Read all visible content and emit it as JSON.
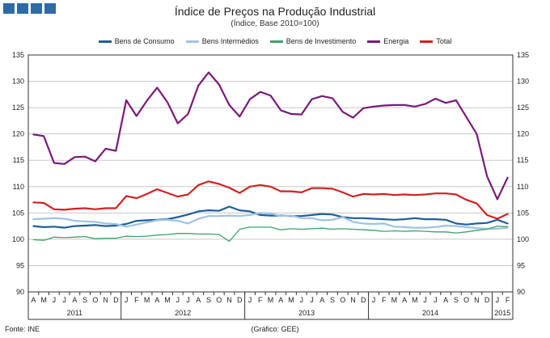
{
  "title": "Índice de Preços na Produção Industrial",
  "subtitle": "(Índice, Base 2010=100)",
  "source": "Fonte: INE",
  "credit": "(Gráfico: GEE)",
  "chart_data": {
    "type": "line",
    "ylim": [
      90,
      135
    ],
    "yticks": [
      90,
      95,
      100,
      105,
      110,
      115,
      120,
      125,
      130,
      135
    ],
    "month_labels": [
      "A",
      "M",
      "J",
      "J",
      "A",
      "S",
      "O",
      "N",
      "D",
      "J",
      "F",
      "M",
      "A",
      "M",
      "J",
      "J",
      "A",
      "S",
      "O",
      "N",
      "D",
      "J",
      "F",
      "M",
      "A",
      "M",
      "J",
      "J",
      "A",
      "S",
      "O",
      "N",
      "D",
      "J",
      "F",
      "M",
      "A",
      "M",
      "J",
      "J",
      "A",
      "S",
      "O",
      "N",
      "D",
      "J",
      "F"
    ],
    "year_labels": [
      {
        "label": "2011",
        "start": 0,
        "end": 8
      },
      {
        "label": "2012",
        "start": 9,
        "end": 20
      },
      {
        "label": "2013",
        "start": 21,
        "end": 32
      },
      {
        "label": "2014",
        "start": 33,
        "end": 44
      },
      {
        "label": "2015",
        "start": 45,
        "end": 46
      }
    ],
    "grid": true,
    "legend_position": "top",
    "series": [
      {
        "name": "Bens de Consumo",
        "color": "#1f5f99",
        "values": [
          102.5,
          102.3,
          102.4,
          102.2,
          102.5,
          102.6,
          102.7,
          102.5,
          102.6,
          102.9,
          103.5,
          103.6,
          103.7,
          103.8,
          104.2,
          104.7,
          105.3,
          105.5,
          105.4,
          106.2,
          105.5,
          105.3,
          104.6,
          104.5,
          104.5,
          104.4,
          104.4,
          104.6,
          104.8,
          104.7,
          104.2,
          104.0,
          104.0,
          103.9,
          103.8,
          103.7,
          103.8,
          104.0,
          103.8,
          103.8,
          103.7,
          103.0,
          102.8,
          103.0,
          103.1,
          103.7,
          103.0
        ]
      },
      {
        "name": "Bens Intermédios",
        "color": "#9dc3e6",
        "values": [
          103.8,
          103.9,
          104.0,
          103.9,
          103.5,
          103.4,
          103.3,
          103.0,
          102.9,
          102.4,
          102.8,
          103.2,
          103.6,
          103.7,
          103.5,
          103.0,
          103.9,
          104.4,
          104.4,
          104.5,
          104.4,
          104.6,
          105.0,
          104.9,
          104.4,
          104.5,
          104.0,
          104.0,
          103.6,
          103.7,
          104.2,
          103.3,
          103.0,
          102.9,
          103.0,
          102.4,
          102.3,
          102.2,
          102.2,
          102.3,
          102.6,
          102.5,
          102.3,
          102.1,
          102.0,
          102.0,
          102.2
        ]
      },
      {
        "name": "Bens de Investimento",
        "color": "#3aa36c",
        "values": [
          99.9,
          99.8,
          100.4,
          100.3,
          100.4,
          100.5,
          100.1,
          100.2,
          100.2,
          100.6,
          100.5,
          100.6,
          100.8,
          100.9,
          101.1,
          101.1,
          101.0,
          101.0,
          100.9,
          99.6,
          101.9,
          102.3,
          102.3,
          102.3,
          101.8,
          102.0,
          101.9,
          102.0,
          102.1,
          101.9,
          102.0,
          101.9,
          101.8,
          101.7,
          101.5,
          101.6,
          101.5,
          101.6,
          101.5,
          101.4,
          101.4,
          101.2,
          101.4,
          101.7,
          101.9,
          102.5,
          102.4
        ]
      },
      {
        "name": "Energia",
        "color": "#7a1a7a",
        "values": [
          119.9,
          119.6,
          114.5,
          114.3,
          115.6,
          115.7,
          114.8,
          117.2,
          116.8,
          126.4,
          123.4,
          126.3,
          128.8,
          126.0,
          122.0,
          123.8,
          129.2,
          131.7,
          129.4,
          125.5,
          123.3,
          126.6,
          128.0,
          127.3,
          124.5,
          123.8,
          123.7,
          126.6,
          127.2,
          126.8,
          124.2,
          123.1,
          124.9,
          125.2,
          125.4,
          125.5,
          125.5,
          125.2,
          125.7,
          126.7,
          125.9,
          126.4,
          123.2,
          120.0,
          112.0,
          107.6,
          111.7
        ]
      },
      {
        "name": "Total",
        "color": "#d62020",
        "values": [
          107.0,
          106.9,
          105.7,
          105.6,
          105.8,
          105.9,
          105.7,
          105.9,
          105.9,
          108.2,
          107.8,
          108.6,
          109.5,
          108.8,
          108.1,
          108.5,
          110.3,
          111.0,
          110.5,
          109.8,
          108.8,
          110.0,
          110.3,
          110.0,
          109.1,
          109.1,
          108.9,
          109.7,
          109.7,
          109.6,
          108.9,
          108.1,
          108.6,
          108.5,
          108.6,
          108.4,
          108.5,
          108.4,
          108.5,
          108.7,
          108.7,
          108.5,
          107.5,
          106.8,
          104.6,
          103.9,
          104.8
        ]
      }
    ]
  }
}
